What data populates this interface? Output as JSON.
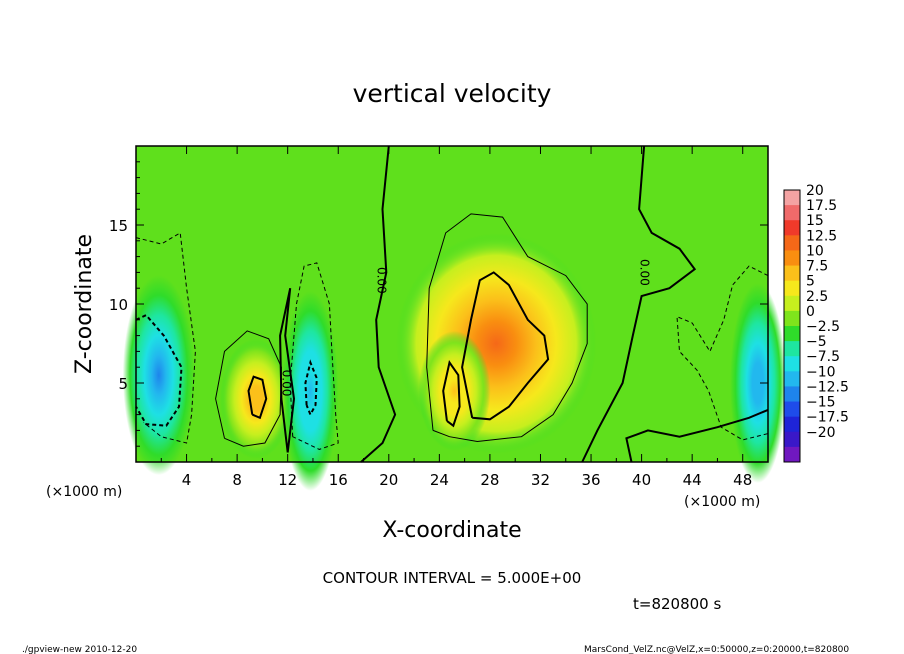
{
  "chart_data": {
    "type": "heatmap",
    "title": "vertical velocity",
    "xlabel": "X-coordinate",
    "ylabel": "Z-coordinate",
    "x_unit_left": "(×1000 m)",
    "x_unit_right": "(×1000 m)",
    "xlim": [
      0,
      50
    ],
    "ylim": [
      0,
      20
    ],
    "x_ticks": [
      4,
      8,
      12,
      16,
      20,
      24,
      28,
      32,
      36,
      40,
      44,
      48
    ],
    "y_ticks": [
      5,
      10,
      15
    ],
    "contour_interval_text": "CONTOUR INTERVAL = 5.000E+00",
    "time_text": "t=820800 s",
    "contour_labels": [
      "0.00",
      "0.00",
      "0.00",
      "0.00"
    ],
    "colorbar": {
      "levels": [
        "20",
        "17.5",
        "15",
        "12.5",
        "10",
        "7.5",
        "5",
        "2.5",
        "0",
        "−2.5",
        "−5",
        "−7.5",
        "−10",
        "−12.5",
        "−15",
        "−17.5",
        "−20"
      ],
      "colors": [
        "#f4a3a3",
        "#f06a6a",
        "#f03a2a",
        "#f56818",
        "#f98e10",
        "#fbc01a",
        "#f6e81c",
        "#c6ef1e",
        "#7fe41c",
        "#2fdc2a",
        "#1ee6a0",
        "#1ee0e4",
        "#22b8ee",
        "#1e84ec",
        "#1e4cea",
        "#1e24d8",
        "#3a18c8",
        "#7018c0"
      ]
    },
    "features": [
      {
        "kind": "updraft",
        "center": [
          28.5,
          7.5
        ],
        "peak": 12.5
      },
      {
        "kind": "updraft",
        "center": [
          9.5,
          4
        ],
        "peak": 9
      },
      {
        "kind": "updraft",
        "center": [
          25.2,
          4.5
        ],
        "peak": 8
      },
      {
        "kind": "downdraft",
        "center": [
          1.8,
          5.5
        ],
        "peak": -11
      },
      {
        "kind": "downdraft",
        "center": [
          13.8,
          4.5
        ],
        "peak": -8
      },
      {
        "kind": "downdraft",
        "center": [
          49.2,
          5
        ],
        "peak": -9
      }
    ]
  },
  "footer": {
    "left": "./gpview-new   2010-12-20",
    "right": "MarsCond_VelZ.nc@VelZ,x=0:50000,z=0:20000,t=820800"
  }
}
